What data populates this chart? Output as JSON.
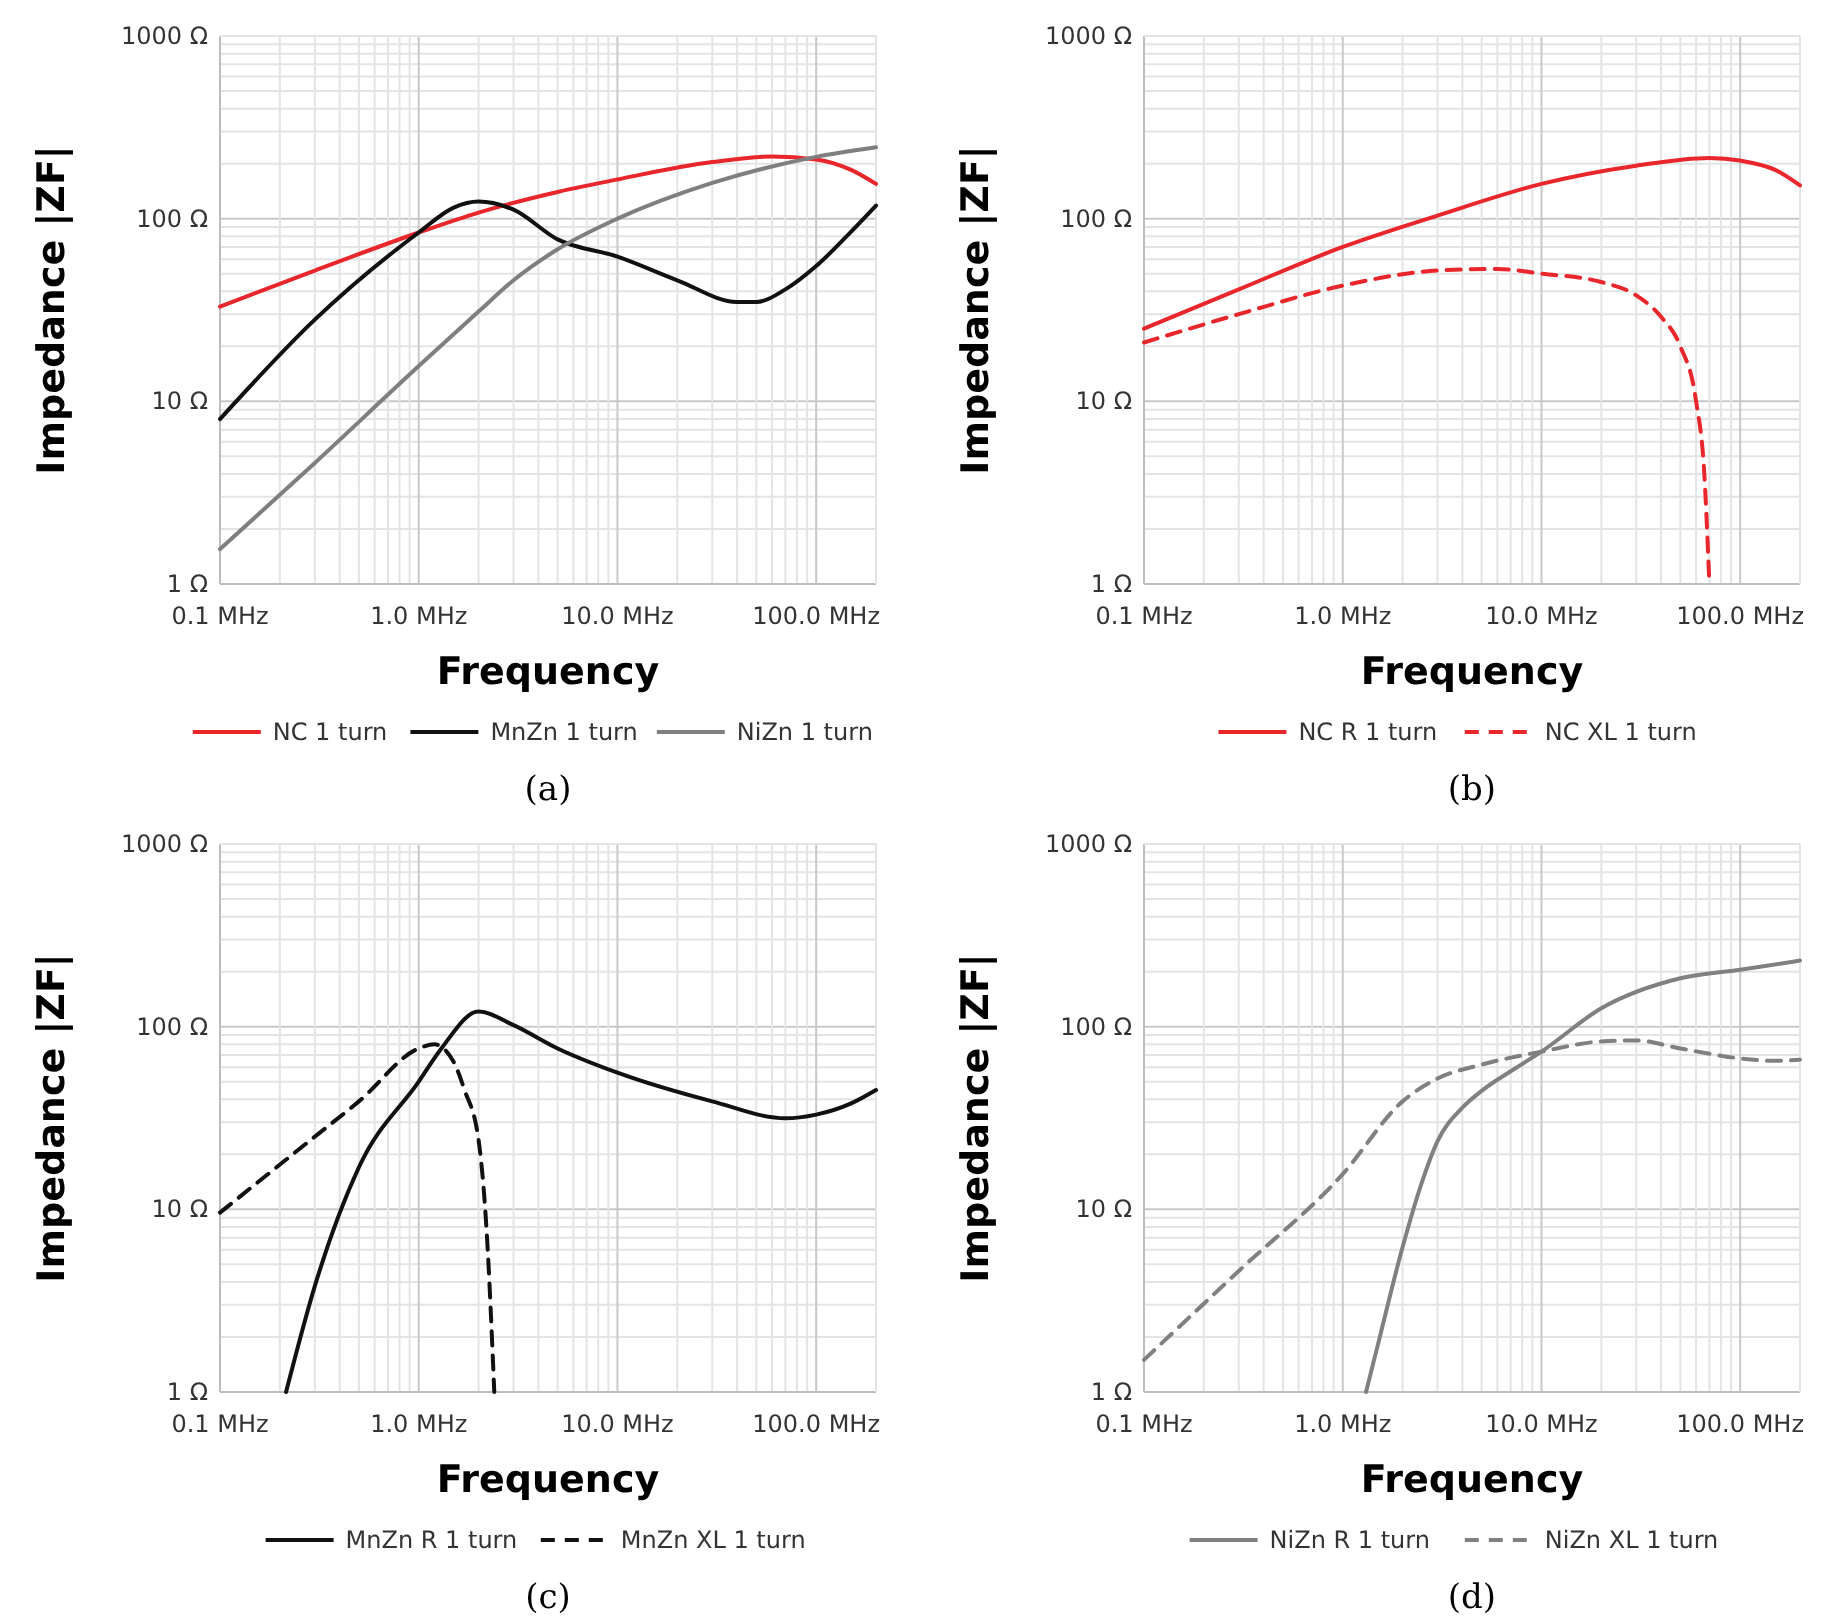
{
  "chart_data": [
    {
      "type": "line",
      "xlabel": "Frequency",
      "ylabel": "Impedance |ZF|",
      "annotations": [
        "(a)"
      ],
      "log": "xy",
      "grid": true,
      "legend": "bottom",
      "xlim": [
        0.1,
        200
      ],
      "ylim": [
        1,
        1000
      ],
      "xticks": [
        {
          "value": 0.1,
          "label": "0.1 MHz"
        },
        {
          "value": 0.2,
          "label": null
        },
        {
          "value": 0.3,
          "label": null
        },
        {
          "value": 0.4,
          "label": null
        },
        {
          "value": 0.5,
          "label": null
        },
        {
          "value": 0.6,
          "label": null
        },
        {
          "value": 0.7,
          "label": null
        },
        {
          "value": 0.8,
          "label": null
        },
        {
          "value": 0.9,
          "label": null
        },
        {
          "value": 1,
          "label": "1.0 MHz"
        },
        {
          "value": 2,
          "label": null
        },
        {
          "value": 3,
          "label": null
        },
        {
          "value": 4,
          "label": null
        },
        {
          "value": 5,
          "label": null
        },
        {
          "value": 6,
          "label": null
        },
        {
          "value": 7,
          "label": null
        },
        {
          "value": 8,
          "label": null
        },
        {
          "value": 9,
          "label": null
        },
        {
          "value": 10,
          "label": "10.0 MHz"
        },
        {
          "value": 20,
          "label": null
        },
        {
          "value": 30,
          "label": null
        },
        {
          "value": 40,
          "label": null
        },
        {
          "value": 50,
          "label": null
        },
        {
          "value": 60,
          "label": null
        },
        {
          "value": 70,
          "label": null
        },
        {
          "value": 80,
          "label": null
        },
        {
          "value": 90,
          "label": null
        },
        {
          "value": 100,
          "label": "100.0 MHz"
        }
      ],
      "yticks": [
        {
          "value": 1,
          "label": "1 Ω"
        },
        {
          "value": 2,
          "label": null
        },
        {
          "value": 3,
          "label": null
        },
        {
          "value": 4,
          "label": null
        },
        {
          "value": 5,
          "label": null
        },
        {
          "value": 6,
          "label": null
        },
        {
          "value": 7,
          "label": null
        },
        {
          "value": 8,
          "label": null
        },
        {
          "value": 9,
          "label": null
        },
        {
          "value": 10,
          "label": "10 Ω"
        },
        {
          "value": 20,
          "label": null
        },
        {
          "value": 30,
          "label": null
        },
        {
          "value": 40,
          "label": null
        },
        {
          "value": 50,
          "label": null
        },
        {
          "value": 60,
          "label": null
        },
        {
          "value": 70,
          "label": null
        },
        {
          "value": 80,
          "label": null
        },
        {
          "value": 90,
          "label": null
        },
        {
          "value": 100,
          "label": "100 Ω"
        },
        {
          "value": 200,
          "label": null
        },
        {
          "value": 300,
          "label": null
        },
        {
          "value": 400,
          "label": null
        },
        {
          "value": 500,
          "label": null
        },
        {
          "value": 600,
          "label": null
        },
        {
          "value": 700,
          "label": null
        },
        {
          "value": 800,
          "label": null
        },
        {
          "value": 900,
          "label": null
        },
        {
          "value": 1000,
          "label": "1000 Ω"
        }
      ],
      "series": [
        {
          "name": "NC 1 turn",
          "color": "#e8262b",
          "line_style": "solid",
          "x": [
            0.1,
            0.3,
            1,
            2,
            5,
            10,
            30,
            60,
            100,
            150,
            200
          ],
          "values": [
            33,
            52,
            84,
            108,
            140,
            164,
            204,
            219,
            211,
            185,
            155
          ]
        },
        {
          "name": "MnZn 1 turn",
          "color": "#111111",
          "line_style": "solid",
          "x": [
            0.1,
            0.3,
            1,
            1.5,
            2,
            3,
            5,
            10,
            20,
            40,
            50,
            70,
            100,
            150,
            200
          ],
          "values": [
            8,
            28,
            84,
            115,
            124,
            112,
            77,
            62,
            46,
            35,
            35,
            41,
            55,
            85,
            118
          ]
        },
        {
          "name": "NiZn 1 turn",
          "color": "#7f7f7f",
          "line_style": "solid",
          "x": [
            0.1,
            0.3,
            1,
            2,
            3,
            5,
            10,
            30,
            100,
            200
          ],
          "values": [
            1.55,
            4.6,
            15.6,
            31,
            46,
            68,
            100,
            157,
            218,
            246
          ]
        }
      ]
    },
    {
      "type": "line",
      "xlabel": "Frequency",
      "ylabel": "Impedance |ZF|",
      "annotations": [
        "(b)"
      ],
      "log": "xy",
      "grid": true,
      "legend": "bottom",
      "xlim": [
        0.1,
        200
      ],
      "ylim": [
        1,
        1000
      ],
      "xticks": [
        {
          "value": 0.1,
          "label": "0.1 MHz"
        },
        {
          "value": 0.2,
          "label": null
        },
        {
          "value": 0.3,
          "label": null
        },
        {
          "value": 0.4,
          "label": null
        },
        {
          "value": 0.5,
          "label": null
        },
        {
          "value": 0.6,
          "label": null
        },
        {
          "value": 0.7,
          "label": null
        },
        {
          "value": 0.8,
          "label": null
        },
        {
          "value": 0.9,
          "label": null
        },
        {
          "value": 1,
          "label": "1.0 MHz"
        },
        {
          "value": 2,
          "label": null
        },
        {
          "value": 3,
          "label": null
        },
        {
          "value": 4,
          "label": null
        },
        {
          "value": 5,
          "label": null
        },
        {
          "value": 6,
          "label": null
        },
        {
          "value": 7,
          "label": null
        },
        {
          "value": 8,
          "label": null
        },
        {
          "value": 9,
          "label": null
        },
        {
          "value": 10,
          "label": "10.0 MHz"
        },
        {
          "value": 20,
          "label": null
        },
        {
          "value": 30,
          "label": null
        },
        {
          "value": 40,
          "label": null
        },
        {
          "value": 50,
          "label": null
        },
        {
          "value": 60,
          "label": null
        },
        {
          "value": 70,
          "label": null
        },
        {
          "value": 80,
          "label": null
        },
        {
          "value": 90,
          "label": null
        },
        {
          "value": 100,
          "label": "100.0 MHz"
        }
      ],
      "yticks": [
        {
          "value": 1,
          "label": "1 Ω"
        },
        {
          "value": 2,
          "label": null
        },
        {
          "value": 3,
          "label": null
        },
        {
          "value": 4,
          "label": null
        },
        {
          "value": 5,
          "label": null
        },
        {
          "value": 6,
          "label": null
        },
        {
          "value": 7,
          "label": null
        },
        {
          "value": 8,
          "label": null
        },
        {
          "value": 9,
          "label": null
        },
        {
          "value": 10,
          "label": "10 Ω"
        },
        {
          "value": 20,
          "label": null
        },
        {
          "value": 30,
          "label": null
        },
        {
          "value": 40,
          "label": null
        },
        {
          "value": 50,
          "label": null
        },
        {
          "value": 60,
          "label": null
        },
        {
          "value": 70,
          "label": null
        },
        {
          "value": 80,
          "label": null
        },
        {
          "value": 90,
          "label": null
        },
        {
          "value": 100,
          "label": "100 Ω"
        },
        {
          "value": 200,
          "label": null
        },
        {
          "value": 300,
          "label": null
        },
        {
          "value": 400,
          "label": null
        },
        {
          "value": 500,
          "label": null
        },
        {
          "value": 600,
          "label": null
        },
        {
          "value": 700,
          "label": null
        },
        {
          "value": 800,
          "label": null
        },
        {
          "value": 900,
          "label": null
        },
        {
          "value": 1000,
          "label": "1000 Ω"
        }
      ],
      "series": [
        {
          "name": "NC R 1 turn",
          "color": "#e8262b",
          "line_style": "solid",
          "x": [
            0.1,
            0.3,
            1,
            3,
            10,
            30,
            70,
            100,
            150,
            200
          ],
          "values": [
            25,
            41,
            70,
            104,
            155,
            195,
            215,
            208,
            185,
            152
          ]
        },
        {
          "name": "NC XL 1 turn",
          "color": "#e8262b",
          "line_style": "dashed",
          "x": [
            0.1,
            0.3,
            1,
            3,
            6,
            10,
            20,
            30,
            40,
            50,
            60,
            66,
            70
          ],
          "values": [
            21,
            30,
            43,
            52,
            53,
            50,
            45,
            38,
            29,
            20,
            10,
            4,
            1
          ]
        }
      ]
    },
    {
      "type": "line",
      "xlabel": "Frequency",
      "ylabel": "Impedance |ZF|",
      "annotations": [
        "(c)"
      ],
      "log": "xy",
      "grid": true,
      "legend": "bottom",
      "xlim": [
        0.1,
        200
      ],
      "ylim": [
        1,
        1000
      ],
      "xticks": [
        {
          "value": 0.1,
          "label": "0.1 MHz"
        },
        {
          "value": 0.2,
          "label": null
        },
        {
          "value": 0.3,
          "label": null
        },
        {
          "value": 0.4,
          "label": null
        },
        {
          "value": 0.5,
          "label": null
        },
        {
          "value": 0.6,
          "label": null
        },
        {
          "value": 0.7,
          "label": null
        },
        {
          "value": 0.8,
          "label": null
        },
        {
          "value": 0.9,
          "label": null
        },
        {
          "value": 1,
          "label": "1.0 MHz"
        },
        {
          "value": 2,
          "label": null
        },
        {
          "value": 3,
          "label": null
        },
        {
          "value": 4,
          "label": null
        },
        {
          "value": 5,
          "label": null
        },
        {
          "value": 6,
          "label": null
        },
        {
          "value": 7,
          "label": null
        },
        {
          "value": 8,
          "label": null
        },
        {
          "value": 9,
          "label": null
        },
        {
          "value": 10,
          "label": "10.0 MHz"
        },
        {
          "value": 20,
          "label": null
        },
        {
          "value": 30,
          "label": null
        },
        {
          "value": 40,
          "label": null
        },
        {
          "value": 50,
          "label": null
        },
        {
          "value": 60,
          "label": null
        },
        {
          "value": 70,
          "label": null
        },
        {
          "value": 80,
          "label": null
        },
        {
          "value": 90,
          "label": null
        },
        {
          "value": 100,
          "label": "100.0 MHz"
        }
      ],
      "yticks": [
        {
          "value": 1,
          "label": "1 Ω"
        },
        {
          "value": 2,
          "label": null
        },
        {
          "value": 3,
          "label": null
        },
        {
          "value": 4,
          "label": null
        },
        {
          "value": 5,
          "label": null
        },
        {
          "value": 6,
          "label": null
        },
        {
          "value": 7,
          "label": null
        },
        {
          "value": 8,
          "label": null
        },
        {
          "value": 9,
          "label": null
        },
        {
          "value": 10,
          "label": "10 Ω"
        },
        {
          "value": 20,
          "label": null
        },
        {
          "value": 30,
          "label": null
        },
        {
          "value": 40,
          "label": null
        },
        {
          "value": 50,
          "label": null
        },
        {
          "value": 60,
          "label": null
        },
        {
          "value": 70,
          "label": null
        },
        {
          "value": 80,
          "label": null
        },
        {
          "value": 90,
          "label": null
        },
        {
          "value": 100,
          "label": "100 Ω"
        },
        {
          "value": 200,
          "label": null
        },
        {
          "value": 300,
          "label": null
        },
        {
          "value": 400,
          "label": null
        },
        {
          "value": 500,
          "label": null
        },
        {
          "value": 600,
          "label": null
        },
        {
          "value": 700,
          "label": null
        },
        {
          "value": 800,
          "label": null
        },
        {
          "value": 900,
          "label": null
        },
        {
          "value": 1000,
          "label": "1000 Ω"
        }
      ],
      "series": [
        {
          "name": "MnZn R 1 turn",
          "color": "#111111",
          "line_style": "solid",
          "x": [
            0.215,
            0.3,
            0.5,
            1,
            1.3,
            2,
            3,
            5,
            10,
            30,
            70,
            100,
            150,
            200
          ],
          "values": [
            1,
            3.8,
            17,
            50,
            76,
            121,
            102,
            76,
            56,
            39,
            31.5,
            33,
            38,
            45
          ]
        },
        {
          "name": "MnZn XL 1 turn",
          "color": "#111111",
          "line_style": "dashed",
          "x": [
            0.1,
            0.3,
            0.5,
            1,
            1.2,
            1.5,
            1.7,
            2,
            2.2,
            2.4
          ],
          "values": [
            9.6,
            25,
            39,
            76,
            80,
            64,
            45,
            24,
            7.4,
            1
          ]
        }
      ]
    },
    {
      "type": "line",
      "xlabel": "Frequency",
      "ylabel": "Impedance |ZF|",
      "annotations": [
        "(d)"
      ],
      "log": "xy",
      "grid": true,
      "legend": "bottom",
      "xlim": [
        0.1,
        200
      ],
      "ylim": [
        1,
        1000
      ],
      "xticks": [
        {
          "value": 0.1,
          "label": "0.1 MHz"
        },
        {
          "value": 0.2,
          "label": null
        },
        {
          "value": 0.3,
          "label": null
        },
        {
          "value": 0.4,
          "label": null
        },
        {
          "value": 0.5,
          "label": null
        },
        {
          "value": 0.6,
          "label": null
        },
        {
          "value": 0.7,
          "label": null
        },
        {
          "value": 0.8,
          "label": null
        },
        {
          "value": 0.9,
          "label": null
        },
        {
          "value": 1,
          "label": "1.0 MHz"
        },
        {
          "value": 2,
          "label": null
        },
        {
          "value": 3,
          "label": null
        },
        {
          "value": 4,
          "label": null
        },
        {
          "value": 5,
          "label": null
        },
        {
          "value": 6,
          "label": null
        },
        {
          "value": 7,
          "label": null
        },
        {
          "value": 8,
          "label": null
        },
        {
          "value": 9,
          "label": null
        },
        {
          "value": 10,
          "label": "10.0 MHz"
        },
        {
          "value": 20,
          "label": null
        },
        {
          "value": 30,
          "label": null
        },
        {
          "value": 40,
          "label": null
        },
        {
          "value": 50,
          "label": null
        },
        {
          "value": 60,
          "label": null
        },
        {
          "value": 70,
          "label": null
        },
        {
          "value": 80,
          "label": null
        },
        {
          "value": 90,
          "label": null
        },
        {
          "value": 100,
          "label": "100.0 MHz"
        }
      ],
      "yticks": [
        {
          "value": 1,
          "label": "1 Ω"
        },
        {
          "value": 2,
          "label": null
        },
        {
          "value": 3,
          "label": null
        },
        {
          "value": 4,
          "label": null
        },
        {
          "value": 5,
          "label": null
        },
        {
          "value": 6,
          "label": null
        },
        {
          "value": 7,
          "label": null
        },
        {
          "value": 8,
          "label": null
        },
        {
          "value": 9,
          "label": null
        },
        {
          "value": 10,
          "label": "10 Ω"
        },
        {
          "value": 20,
          "label": null
        },
        {
          "value": 30,
          "label": null
        },
        {
          "value": 40,
          "label": null
        },
        {
          "value": 50,
          "label": null
        },
        {
          "value": 60,
          "label": null
        },
        {
          "value": 70,
          "label": null
        },
        {
          "value": 80,
          "label": null
        },
        {
          "value": 90,
          "label": null
        },
        {
          "value": 100,
          "label": "100 Ω"
        },
        {
          "value": 200,
          "label": null
        },
        {
          "value": 300,
          "label": null
        },
        {
          "value": 400,
          "label": null
        },
        {
          "value": 500,
          "label": null
        },
        {
          "value": 600,
          "label": null
        },
        {
          "value": 700,
          "label": null
        },
        {
          "value": 800,
          "label": null
        },
        {
          "value": 900,
          "label": null
        },
        {
          "value": 1000,
          "label": "1000 Ω"
        }
      ],
      "series": [
        {
          "name": "NiZn R 1 turn",
          "color": "#808080",
          "line_style": "solid",
          "x": [
            1.31,
            1.5,
            2,
            2.5,
            3,
            4,
            5,
            7,
            10,
            20,
            50,
            100,
            200
          ],
          "values": [
            1,
            1.8,
            6.2,
            14,
            23.6,
            36,
            44.5,
            57,
            73,
            126,
            184,
            205,
            230
          ]
        },
        {
          "name": "NiZn XL 1 turn",
          "color": "#808080",
          "line_style": "dashed",
          "x": [
            0.1,
            0.3,
            1,
            2,
            3,
            5,
            10,
            20,
            30,
            50,
            100,
            150,
            200
          ],
          "values": [
            1.5,
            4.6,
            15.6,
            39,
            52,
            62,
            73,
            83,
            84,
            76,
            67,
            65,
            66
          ]
        }
      ]
    }
  ]
}
